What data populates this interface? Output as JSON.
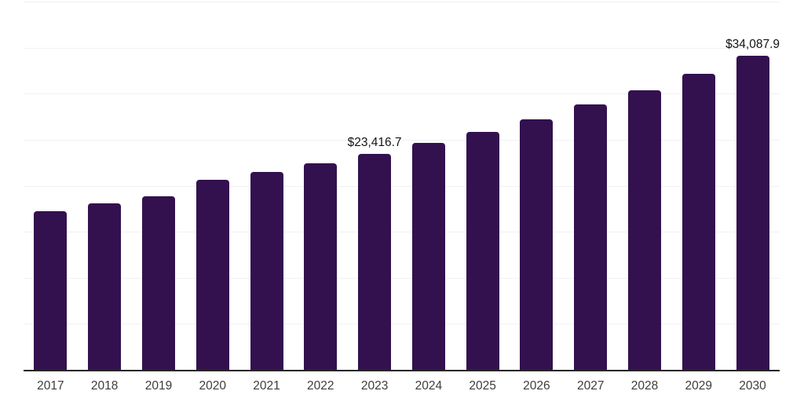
{
  "chart_data": {
    "type": "bar",
    "title": "",
    "xlabel": "",
    "ylabel": "",
    "categories": [
      "2017",
      "2018",
      "2019",
      "2020",
      "2021",
      "2022",
      "2023",
      "2024",
      "2025",
      "2026",
      "2027",
      "2028",
      "2029",
      "2030"
    ],
    "values": [
      17270,
      18040,
      18890,
      20660,
      21470,
      22400,
      23416.7,
      24640,
      25870,
      27230,
      28790,
      30360,
      32180,
      34087.9
    ],
    "annotations": [
      {
        "category": "2023",
        "text": "$23,416.7"
      },
      {
        "category": "2030",
        "text": "$34,087.9"
      }
    ],
    "ylim": [
      0,
      40000
    ],
    "gridline_interval": 5000,
    "grid": "horizontal",
    "legend": "none",
    "y_tick_labels_visible": false,
    "bar_color": "#33114f",
    "axis_line_color": "#262626",
    "gridline_color": "#f1f1f1",
    "x_label_color": "#3d3d3d",
    "annotation_color": "#141414"
  }
}
